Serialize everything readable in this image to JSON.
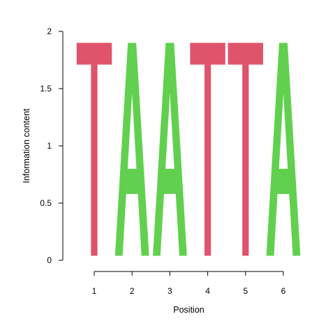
{
  "chart_data": {
    "type": "sequence-logo",
    "xlabel": "Position",
    "ylabel": "Information content",
    "x_ticks": [
      "1",
      "2",
      "3",
      "4",
      "5",
      "6"
    ],
    "y_ticks": [
      "0",
      "0.5",
      "1",
      "1.5",
      "2"
    ],
    "ylim": [
      0,
      2
    ],
    "positions": [
      {
        "position": 1,
        "letter": "T",
        "information": 2
      },
      {
        "position": 2,
        "letter": "A",
        "information": 2
      },
      {
        "position": 3,
        "letter": "A",
        "information": 2
      },
      {
        "position": 4,
        "letter": "T",
        "information": 2
      },
      {
        "position": 5,
        "letter": "T",
        "information": 2
      },
      {
        "position": 6,
        "letter": "A",
        "information": 2
      }
    ],
    "colors": {
      "T": "#df536b",
      "A": "#61d04f"
    }
  }
}
